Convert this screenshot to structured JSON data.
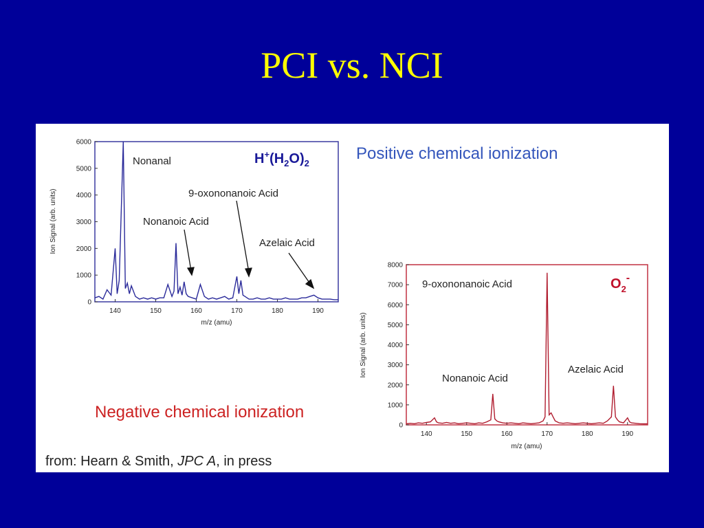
{
  "slide": {
    "title": "PCI vs. NCI"
  },
  "captions": {
    "pci": "Positive chemical ionization",
    "nci": "Negative chemical ionization"
  },
  "source": {
    "prefix": "from: Hearn & Smith, ",
    "journal": "JPC A",
    "suffix": ", in press"
  },
  "colors": {
    "background": "#000099",
    "title": "#ffff00",
    "pci_trace": "#2a2a9a",
    "nci_trace": "#b01c2e",
    "pci_caption": "#3355bb",
    "nci_caption": "#cc2222"
  },
  "chart_data": [
    {
      "type": "line",
      "xlabel": "m/z (amu)",
      "ylabel": "Ion Signal (arb. units)",
      "xlim": [
        135,
        195
      ],
      "ylim": [
        0,
        6000
      ],
      "x_ticks": [
        "140",
        "150",
        "160",
        "170",
        "180",
        "190"
      ],
      "y_ticks": [
        "0",
        "1000",
        "2000",
        "3000",
        "4000",
        "5000",
        "6000"
      ],
      "ion_label_main": "H",
      "ion_label_sup": "+",
      "ion_label_rest": "(H",
      "ion_label_sub1": "2",
      "ion_label_rest2": "O)",
      "ion_label_sub2": "2",
      "series": [
        {
          "x": [
            135,
            136,
            137,
            138,
            139,
            140,
            140.5,
            141,
            142,
            142.5,
            143,
            143.5,
            144,
            145,
            146,
            147,
            148,
            149,
            150,
            151,
            152,
            153,
            154,
            154.5,
            155,
            155.5,
            156,
            156.5,
            157,
            157.5,
            158,
            159,
            160,
            161,
            162,
            163,
            164,
            165,
            166,
            167,
            168,
            169,
            170,
            170.5,
            171,
            171.5,
            172,
            172.5,
            173,
            174,
            175,
            176,
            177,
            178,
            179,
            180,
            181,
            182,
            183,
            184,
            185,
            186,
            187,
            188,
            189,
            190,
            191,
            192,
            193,
            194,
            195
          ],
          "y": [
            150,
            200,
            100,
            450,
            250,
            2000,
            300,
            800,
            6000,
            500,
            700,
            300,
            600,
            200,
            100,
            150,
            100,
            150,
            100,
            150,
            150,
            650,
            200,
            400,
            2200,
            300,
            550,
            250,
            750,
            300,
            200,
            150,
            100,
            650,
            200,
            100,
            150,
            100,
            150,
            200,
            100,
            150,
            950,
            300,
            800,
            250,
            200,
            150,
            100,
            100,
            150,
            100,
            100,
            150,
            100,
            100,
            100,
            150,
            100,
            100,
            100,
            150,
            150,
            200,
            250,
            150,
            100,
            100,
            100,
            80,
            80
          ]
        }
      ],
      "annotations": [
        {
          "label": "Nonanal",
          "x": 142.5
        },
        {
          "label": "9-oxononanoic Acid",
          "x": 172.5
        },
        {
          "label": "Nonanoic Acid",
          "x": 158.5
        },
        {
          "label": "Azelaic Acid",
          "x": 188.5
        }
      ]
    },
    {
      "type": "line",
      "xlabel": "m/z (amu)",
      "ylabel": "Ion Signal (arb. units)",
      "xlim": [
        135,
        195
      ],
      "ylim": [
        0,
        8000
      ],
      "x_ticks": [
        "140",
        "150",
        "160",
        "170",
        "180",
        "190"
      ],
      "y_ticks": [
        "0",
        "1000",
        "2000",
        "3000",
        "4000",
        "5000",
        "6000",
        "7000",
        "8000"
      ],
      "ion_label_main": "O",
      "ion_label_sub": "2",
      "ion_label_sup": "-",
      "series": [
        {
          "x": [
            135,
            136,
            137,
            138,
            139,
            140,
            141,
            142,
            142.5,
            143,
            144,
            145,
            146,
            147,
            148,
            149,
            150,
            151,
            152,
            153,
            154,
            155,
            156,
            156.5,
            157,
            157.5,
            158,
            159,
            160,
            161,
            162,
            163,
            164,
            165,
            166,
            167,
            168,
            169,
            169.5,
            170,
            170.5,
            171,
            171.5,
            172,
            172.5,
            173,
            174,
            175,
            176,
            177,
            178,
            179,
            180,
            181,
            182,
            183,
            184,
            185,
            186,
            186.5,
            187,
            187.5,
            188,
            189,
            190,
            190.5,
            191,
            192,
            193,
            194,
            195
          ],
          "y": [
            50,
            80,
            60,
            100,
            80,
            120,
            150,
            350,
            150,
            100,
            80,
            120,
            80,
            100,
            60,
            80,
            100,
            80,
            60,
            100,
            80,
            150,
            250,
            1550,
            300,
            200,
            150,
            100,
            80,
            100,
            80,
            60,
            100,
            80,
            60,
            80,
            100,
            200,
            400,
            7600,
            500,
            600,
            400,
            200,
            150,
            100,
            80,
            100,
            80,
            60,
            80,
            100,
            80,
            60,
            80,
            100,
            80,
            200,
            400,
            1950,
            400,
            250,
            150,
            100,
            350,
            150,
            100,
            80,
            60,
            50,
            50
          ]
        }
      ],
      "annotations": [
        {
          "label": "9-oxononanoic Acid",
          "x": 170
        },
        {
          "label": "Nonanoic Acid",
          "x": 157
        },
        {
          "label": "Azelaic Acid",
          "x": 187
        }
      ]
    }
  ]
}
